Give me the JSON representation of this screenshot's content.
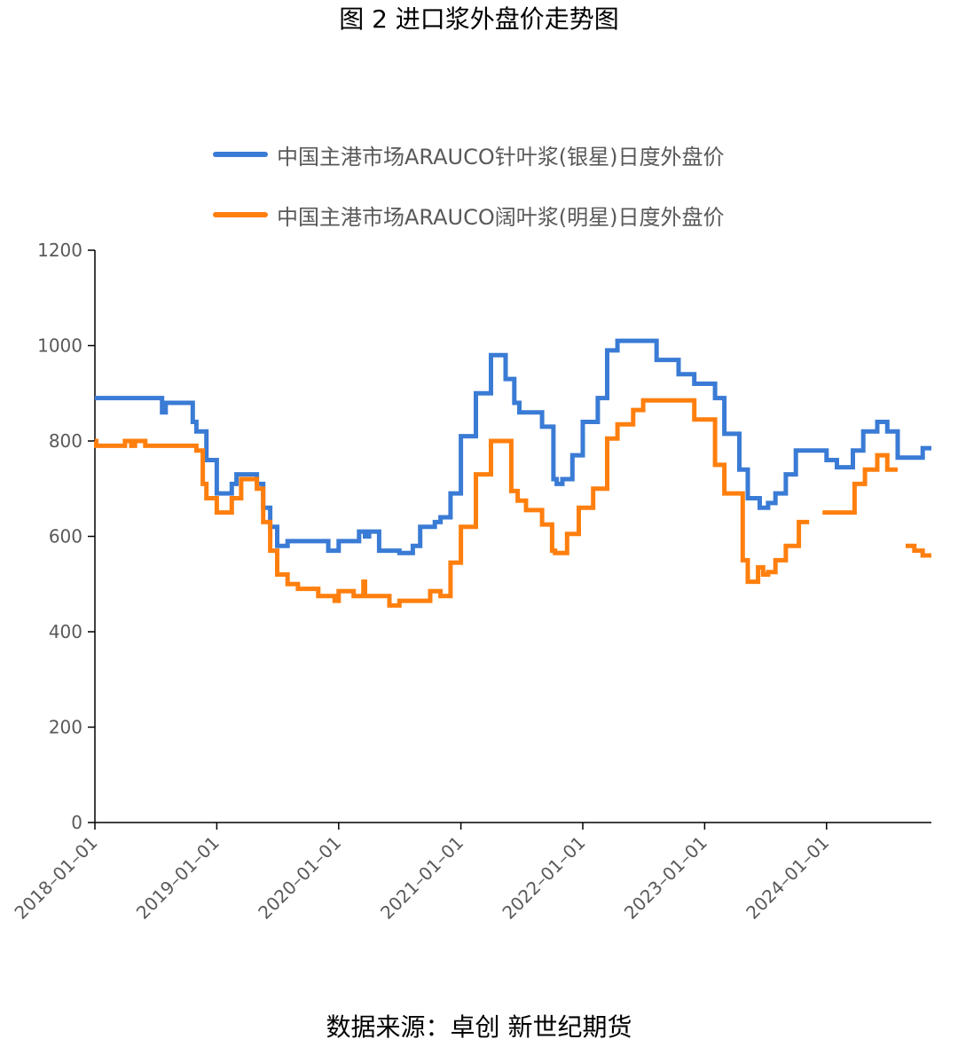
{
  "title": "图 2  进口浆外盘价走势图",
  "source": "数据来源：卓创  新世纪期货",
  "chart_data": {
    "type": "line",
    "x_type": "date",
    "xlim": [
      "2018-01-01",
      "2024-11-10"
    ],
    "ylim": [
      0,
      1200
    ],
    "y_ticks": [
      0,
      200,
      400,
      600,
      800,
      1000,
      1200
    ],
    "x_ticks": [
      "2018-01-01",
      "2019-01-01",
      "2020-01-01",
      "2021-01-01",
      "2022-01-01",
      "2023-01-01",
      "2024-01-01"
    ],
    "grid": false,
    "legend_position": "top",
    "series": [
      {
        "name": "中国主港市场ARAUCO针叶浆(银星)日度外盘价",
        "color": "#3a7bd5",
        "points": [
          [
            "2018-01-01",
            890
          ],
          [
            "2018-07-20",
            890
          ],
          [
            "2018-07-21",
            860
          ],
          [
            "2018-08-01",
            880
          ],
          [
            "2018-10-20",
            880
          ],
          [
            "2018-10-21",
            840
          ],
          [
            "2018-11-01",
            820
          ],
          [
            "2018-12-01",
            760
          ],
          [
            "2019-01-01",
            690
          ],
          [
            "2019-02-15",
            710
          ],
          [
            "2019-03-01",
            730
          ],
          [
            "2019-05-01",
            710
          ],
          [
            "2019-05-20",
            660
          ],
          [
            "2019-06-10",
            620
          ],
          [
            "2019-07-01",
            580
          ],
          [
            "2019-08-01",
            590
          ],
          [
            "2019-11-01",
            590
          ],
          [
            "2019-12-01",
            570
          ],
          [
            "2020-01-01",
            590
          ],
          [
            "2020-03-01",
            590
          ],
          [
            "2020-03-02",
            610
          ],
          [
            "2020-03-20",
            600
          ],
          [
            "2020-04-01",
            610
          ],
          [
            "2020-05-01",
            570
          ],
          [
            "2020-07-01",
            565
          ],
          [
            "2020-08-10",
            580
          ],
          [
            "2020-09-01",
            620
          ],
          [
            "2020-10-15",
            630
          ],
          [
            "2020-11-01",
            640
          ],
          [
            "2020-12-01",
            690
          ],
          [
            "2021-01-01",
            810
          ],
          [
            "2021-02-15",
            900
          ],
          [
            "2021-04-01",
            980
          ],
          [
            "2021-05-15",
            930
          ],
          [
            "2021-06-10",
            880
          ],
          [
            "2021-06-25",
            860
          ],
          [
            "2021-09-01",
            830
          ],
          [
            "2021-10-05",
            720
          ],
          [
            "2021-10-15",
            710
          ],
          [
            "2021-11-01",
            720
          ],
          [
            "2021-12-01",
            770
          ],
          [
            "2022-01-01",
            840
          ],
          [
            "2022-02-15",
            890
          ],
          [
            "2022-03-15",
            990
          ],
          [
            "2022-04-15",
            1010
          ],
          [
            "2022-08-10",
            970
          ],
          [
            "2022-10-15",
            940
          ],
          [
            "2022-12-01",
            920
          ],
          [
            "2023-02-01",
            890
          ],
          [
            "2023-03-01",
            815
          ],
          [
            "2023-04-15",
            740
          ],
          [
            "2023-05-10",
            680
          ],
          [
            "2023-06-15",
            660
          ],
          [
            "2023-07-10",
            670
          ],
          [
            "2023-08-01",
            690
          ],
          [
            "2023-09-01",
            730
          ],
          [
            "2023-10-01",
            780
          ],
          [
            "2024-01-01",
            760
          ],
          [
            "2024-02-01",
            745
          ],
          [
            "2024-03-20",
            780
          ],
          [
            "2024-04-20",
            820
          ],
          [
            "2024-06-01",
            840
          ],
          [
            "2024-07-01",
            820
          ],
          [
            "2024-08-01",
            765
          ],
          [
            "2024-10-15",
            785
          ],
          [
            "2024-11-10",
            785
          ]
        ]
      },
      {
        "name": "中国主港市场ARAUCO阔叶浆(明星)日度外盘价",
        "color": "#ff7f0e",
        "segments": [
          [
            [
              "2018-01-01",
              800
            ],
            [
              "2018-01-05",
              790
            ],
            [
              "2018-04-01",
              800
            ],
            [
              "2018-04-20",
              790
            ],
            [
              "2018-05-01",
              800
            ],
            [
              "2018-06-01",
              790
            ],
            [
              "2018-11-01",
              780
            ],
            [
              "2018-11-20",
              710
            ],
            [
              "2018-12-01",
              680
            ],
            [
              "2019-01-01",
              650
            ],
            [
              "2019-02-15",
              680
            ],
            [
              "2019-03-15",
              720
            ],
            [
              "2019-05-01",
              700
            ],
            [
              "2019-05-20",
              630
            ],
            [
              "2019-06-10",
              570
            ],
            [
              "2019-07-01",
              520
            ],
            [
              "2019-08-01",
              500
            ],
            [
              "2019-09-01",
              490
            ],
            [
              "2019-11-01",
              475
            ],
            [
              "2019-12-20",
              465
            ],
            [
              "2020-01-01",
              485
            ],
            [
              "2020-02-15",
              475
            ],
            [
              "2020-03-15",
              505
            ],
            [
              "2020-03-20",
              475
            ],
            [
              "2020-06-01",
              455
            ],
            [
              "2020-07-01",
              465
            ],
            [
              "2020-10-01",
              485
            ],
            [
              "2020-11-01",
              475
            ],
            [
              "2020-12-01",
              545
            ],
            [
              "2021-01-01",
              620
            ],
            [
              "2021-02-15",
              730
            ],
            [
              "2021-04-01",
              800
            ],
            [
              "2021-06-01",
              695
            ],
            [
              "2021-06-20",
              675
            ],
            [
              "2021-07-15",
              655
            ],
            [
              "2021-09-01",
              625
            ],
            [
              "2021-10-01",
              570
            ],
            [
              "2021-10-10",
              565
            ],
            [
              "2021-11-15",
              605
            ],
            [
              "2021-12-20",
              660
            ],
            [
              "2022-02-01",
              700
            ],
            [
              "2022-03-15",
              805
            ],
            [
              "2022-04-15",
              835
            ],
            [
              "2022-06-01",
              865
            ],
            [
              "2022-07-01",
              885
            ],
            [
              "2022-12-01",
              845
            ],
            [
              "2023-01-10",
              845
            ],
            [
              "2023-02-01",
              750
            ],
            [
              "2023-03-01",
              690
            ],
            [
              "2023-04-15",
              690
            ],
            [
              "2023-04-25",
              550
            ],
            [
              "2023-05-10",
              505
            ],
            [
              "2023-06-10",
              535
            ],
            [
              "2023-06-25",
              520
            ],
            [
              "2023-07-10",
              525
            ],
            [
              "2023-08-01",
              550
            ],
            [
              "2023-09-01",
              580
            ],
            [
              "2023-10-10",
              630
            ],
            [
              "2023-11-10",
              630
            ]
          ],
          [
            [
              "2023-12-20",
              650
            ],
            [
              "2024-03-15",
              650
            ],
            [
              "2024-03-25",
              710
            ],
            [
              "2024-04-25",
              740
            ],
            [
              "2024-06-01",
              770
            ],
            [
              "2024-07-01",
              740
            ],
            [
              "2024-08-01",
              740
            ]
          ],
          [
            [
              "2024-08-25",
              580
            ],
            [
              "2024-09-20",
              570
            ],
            [
              "2024-10-15",
              560
            ],
            [
              "2024-11-10",
              560
            ]
          ]
        ]
      }
    ]
  }
}
